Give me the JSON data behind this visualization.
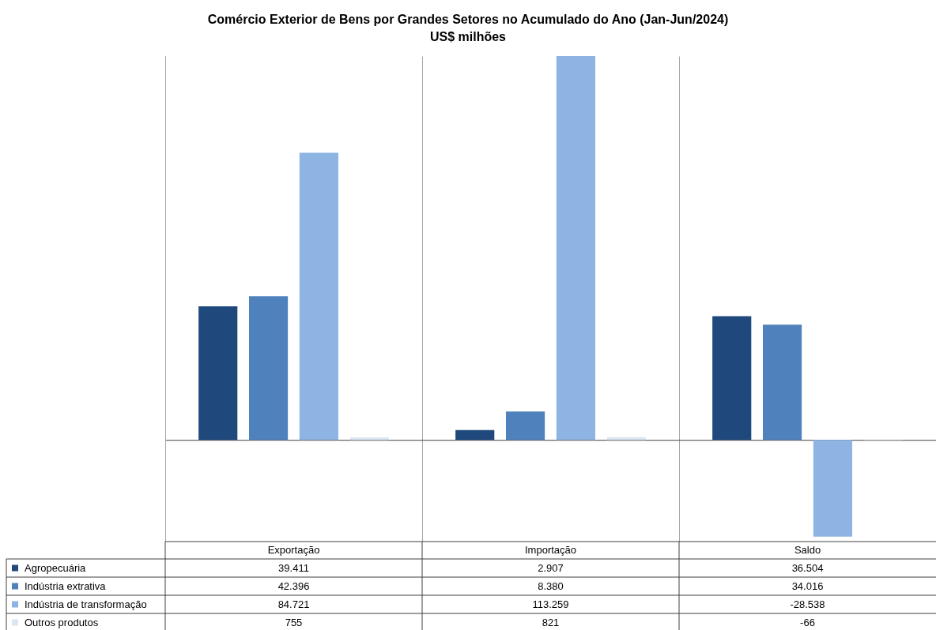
{
  "chart_data": {
    "type": "bar",
    "title": "Comércio Exterior de Bens por Grandes Setores no Acumulado do Ano (Jan-Jun/2024)",
    "subtitle": "US$ milhões",
    "categories": [
      "Exportação",
      "Importação",
      "Saldo"
    ],
    "series": [
      {
        "name": "Agropecuária",
        "color": "#1f497d",
        "values": [
          39411,
          2907,
          36504
        ],
        "value_labels": [
          "39.411",
          "2.907",
          "36.504"
        ]
      },
      {
        "name": "Indústria extrativa",
        "color": "#4f81bd",
        "values": [
          42396,
          8380,
          34016
        ],
        "value_labels": [
          "42.396",
          "8.380",
          "34.016"
        ]
      },
      {
        "name": "Indústria de transformação",
        "color": "#8eb4e3",
        "values": [
          84721,
          113259,
          -28538
        ],
        "value_labels": [
          "84.721",
          "113.259",
          "-28.538"
        ]
      },
      {
        "name": "Outros produtos",
        "color": "#dce6f2",
        "values": [
          755,
          821,
          -66
        ],
        "value_labels": [
          "755",
          "821",
          "-66"
        ]
      }
    ],
    "ylim": [
      -30000,
      113259
    ],
    "grid": "x",
    "legend": "bottom left",
    "tick_labels": "x"
  }
}
